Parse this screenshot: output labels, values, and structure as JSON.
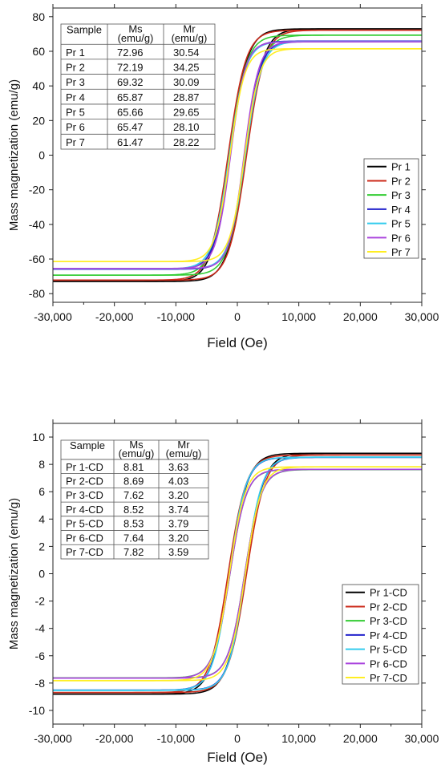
{
  "chart_data": [
    {
      "type": "line",
      "xlabel": "Field (Oe)",
      "ylabel": "Mass magnetization (emu/g)",
      "xlim": [
        -30000,
        30000
      ],
      "ylim": [
        -85,
        85
      ],
      "x_ticks": [
        -30000,
        -20000,
        -10000,
        0,
        10000,
        20000,
        30000
      ],
      "x_tick_labels": [
        "-30,000",
        "-20,000",
        "-10,000",
        "0",
        "10,000",
        "20,000",
        "30,000"
      ],
      "y_ticks": [
        -80,
        -60,
        -40,
        -20,
        0,
        20,
        40,
        60,
        80
      ],
      "y_tick_labels": [
        "-80",
        "-60",
        "-40",
        "-20",
        "0",
        "20",
        "40",
        "60",
        "80"
      ],
      "grid": false,
      "legend_position": "bottom-right",
      "table": {
        "headers": [
          "Sample",
          "Ms (emu/g)",
          "Mr (emu/g)"
        ],
        "header_lines": [
          [
            "Sample"
          ],
          [
            "Ms",
            "(emu/g)"
          ],
          [
            "Mr",
            "(emu/g)"
          ]
        ],
        "rows": [
          [
            "Pr 1",
            "72.96",
            "30.54"
          ],
          [
            "Pr 2",
            "72.19",
            "34.25"
          ],
          [
            "Pr 3",
            "69.32",
            "30.09"
          ],
          [
            "Pr 4",
            "65.87",
            "28.87"
          ],
          [
            "Pr 5",
            "65.66",
            "29.65"
          ],
          [
            "Pr 6",
            "65.47",
            "28.10"
          ],
          [
            "Pr 7",
            "61.47",
            "28.22"
          ]
        ]
      },
      "series": [
        {
          "name": "Pr 1",
          "color": "#000000",
          "ms": 72.96,
          "mr": 30.54,
          "hc": 1300
        },
        {
          "name": "Pr 2",
          "color": "#cc2a1a",
          "ms": 72.19,
          "mr": 34.25,
          "hc": 1500
        },
        {
          "name": "Pr 3",
          "color": "#33cc33",
          "ms": 69.32,
          "mr": 30.09,
          "hc": 1300
        },
        {
          "name": "Pr 4",
          "color": "#2222cc",
          "ms": 65.87,
          "mr": 28.87,
          "hc": 1200
        },
        {
          "name": "Pr 5",
          "color": "#33ccee",
          "ms": 65.66,
          "mr": 29.65,
          "hc": 1300
        },
        {
          "name": "Pr 6",
          "color": "#aa44dd",
          "ms": 65.47,
          "mr": 28.1,
          "hc": 1100
        },
        {
          "name": "Pr 7",
          "color": "#ffee22",
          "ms": 61.47,
          "mr": 28.22,
          "hc": 1200
        }
      ]
    },
    {
      "type": "line",
      "xlabel": "Field (Oe)",
      "ylabel": "Mass magnetization (emu/g)",
      "xlim": [
        -30000,
        30000
      ],
      "ylim": [
        -11,
        11
      ],
      "x_ticks": [
        -30000,
        -20000,
        -10000,
        0,
        10000,
        20000,
        30000
      ],
      "x_tick_labels": [
        "-30,000",
        "-20,000",
        "-10,000",
        "0",
        "10,000",
        "20,000",
        "30,000"
      ],
      "y_ticks": [
        -10,
        -8,
        -6,
        -4,
        -2,
        0,
        2,
        4,
        6,
        8,
        10
      ],
      "y_tick_labels": [
        "-10",
        "-8",
        "-6",
        "-4",
        "-2",
        "0",
        "2",
        "4",
        "6",
        "8",
        "10"
      ],
      "grid": false,
      "legend_position": "bottom-right",
      "table": {
        "headers": [
          "Sample",
          "Ms (emu/g)",
          "Mr (emu/g)"
        ],
        "header_lines": [
          [
            "Sample"
          ],
          [
            "Ms",
            "(emu/g)"
          ],
          [
            "Mr",
            "(emu/g)"
          ]
        ],
        "rows": [
          [
            "Pr 1-CD",
            "8.81",
            "3.63"
          ],
          [
            "Pr 2-CD",
            "8.69",
            "4.03"
          ],
          [
            "Pr 3-CD",
            "7.62",
            "3.20"
          ],
          [
            "Pr 4-CD",
            "8.52",
            "3.74"
          ],
          [
            "Pr 5-CD",
            "8.53",
            "3.79"
          ],
          [
            "Pr 6-CD",
            "7.64",
            "3.20"
          ],
          [
            "Pr 7-CD",
            "7.82",
            "3.59"
          ]
        ]
      },
      "series": [
        {
          "name": "Pr 1-CD",
          "color": "#000000",
          "ms": 8.81,
          "mr": 3.63,
          "hc": 1300
        },
        {
          "name": "Pr 2-CD",
          "color": "#cc2a1a",
          "ms": 8.69,
          "mr": 4.03,
          "hc": 1500
        },
        {
          "name": "Pr 3-CD",
          "color": "#33cc33",
          "ms": 7.62,
          "mr": 3.2,
          "hc": 1200
        },
        {
          "name": "Pr 4-CD",
          "color": "#2222cc",
          "ms": 8.52,
          "mr": 3.74,
          "hc": 1300
        },
        {
          "name": "Pr 5-CD",
          "color": "#33ccee",
          "ms": 8.53,
          "mr": 3.79,
          "hc": 1300
        },
        {
          "name": "Pr 6-CD",
          "color": "#aa44dd",
          "ms": 7.64,
          "mr": 3.2,
          "hc": 1200
        },
        {
          "name": "Pr 7-CD",
          "color": "#ffee22",
          "ms": 7.82,
          "mr": 3.59,
          "hc": 1300
        }
      ]
    }
  ]
}
